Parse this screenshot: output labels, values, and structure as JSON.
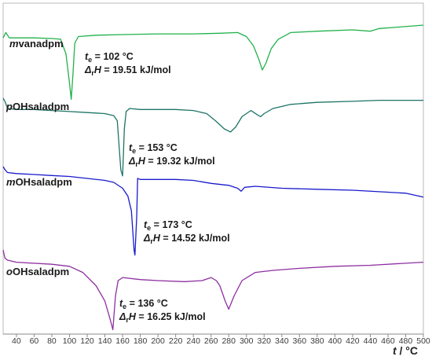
{
  "chart_data": {
    "type": "line",
    "xlabel": "t / °C",
    "xlabel_parts": {
      "var": "t",
      "unit": " / °C"
    },
    "xlim": [
      25,
      500
    ],
    "xticks": [
      40,
      60,
      80,
      100,
      120,
      140,
      160,
      180,
      200,
      220,
      240,
      260,
      280,
      300,
      320,
      340,
      360,
      380,
      400,
      420,
      440,
      460,
      480,
      500
    ],
    "ylabel": "",
    "grid": false,
    "legend": "none",
    "series": [
      {
        "name": "mvanadpm",
        "label_prefix": "m",
        "label_stem": "vanadpm",
        "color": "#22b14c",
        "points": [
          [
            25,
            0.06
          ],
          [
            28,
            0.02
          ],
          [
            32,
            0.06
          ],
          [
            40,
            0.06
          ],
          [
            60,
            0.06
          ],
          [
            80,
            0.065
          ],
          [
            90,
            0.07
          ],
          [
            96,
            0.18
          ],
          [
            100,
            0.4
          ],
          [
            102,
            0.52
          ],
          [
            104,
            0.32
          ],
          [
            106,
            0.1
          ],
          [
            110,
            0.05
          ],
          [
            130,
            0.04
          ],
          [
            160,
            0.035
          ],
          [
            200,
            0.03
          ],
          [
            240,
            0.03
          ],
          [
            270,
            0.025
          ],
          [
            290,
            0.02
          ],
          [
            300,
            0.05
          ],
          [
            308,
            0.12
          ],
          [
            314,
            0.22
          ],
          [
            318,
            0.3
          ],
          [
            322,
            0.25
          ],
          [
            328,
            0.14
          ],
          [
            336,
            0.07
          ],
          [
            350,
            0.02
          ],
          [
            380,
            0.01
          ],
          [
            420,
            0.0
          ],
          [
            440,
            0.01
          ],
          [
            450,
            -0.01
          ],
          [
            470,
            -0.02
          ],
          [
            490,
            -0.03
          ],
          [
            500,
            -0.035
          ]
        ],
        "annotation": {
          "te": "102 °C",
          "dH": "19.51 kJ/mol"
        }
      },
      {
        "name": "pOHsaladpm",
        "label_prefix": "p",
        "label_stem": "OHsaladpm",
        "color": "#1e7466",
        "points": [
          [
            25,
            0.0
          ],
          [
            27,
            0.03
          ],
          [
            30,
            0.1
          ],
          [
            40,
            0.11
          ],
          [
            60,
            0.11
          ],
          [
            80,
            0.12
          ],
          [
            100,
            0.13
          ],
          [
            120,
            0.14
          ],
          [
            140,
            0.15
          ],
          [
            150,
            0.17
          ],
          [
            154,
            0.22
          ],
          [
            158,
            0.7
          ],
          [
            160,
            0.76
          ],
          [
            162,
            0.3
          ],
          [
            164,
            0.13
          ],
          [
            168,
            0.1
          ],
          [
            180,
            0.11
          ],
          [
            200,
            0.11
          ],
          [
            220,
            0.11
          ],
          [
            240,
            0.12
          ],
          [
            255,
            0.15
          ],
          [
            265,
            0.22
          ],
          [
            275,
            0.3
          ],
          [
            282,
            0.33
          ],
          [
            288,
            0.28
          ],
          [
            295,
            0.18
          ],
          [
            305,
            0.12
          ],
          [
            312,
            0.16
          ],
          [
            316,
            0.18
          ],
          [
            320,
            0.15
          ],
          [
            330,
            0.1
          ],
          [
            350,
            0.06
          ],
          [
            380,
            0.04
          ],
          [
            420,
            0.03
          ],
          [
            450,
            0.02
          ],
          [
            470,
            0.02
          ],
          [
            490,
            0.02
          ],
          [
            500,
            0.02
          ]
        ],
        "annotation": {
          "te": "153 °C",
          "dH": "19.32 kJ/mol"
        }
      },
      {
        "name": "mOHsaladpm",
        "label_prefix": "m",
        "label_stem": "OHsaladpm",
        "color": "#1a1acc",
        "points": [
          [
            25,
            0.0
          ],
          [
            27,
            0.03
          ],
          [
            30,
            0.06
          ],
          [
            40,
            0.07
          ],
          [
            60,
            0.08
          ],
          [
            80,
            0.09
          ],
          [
            100,
            0.1
          ],
          [
            120,
            0.12
          ],
          [
            140,
            0.14
          ],
          [
            150,
            0.16
          ],
          [
            160,
            0.22
          ],
          [
            166,
            0.3
          ],
          [
            170,
            0.45
          ],
          [
            173,
            0.85
          ],
          [
            174,
            0.9
          ],
          [
            176,
            0.5
          ],
          [
            177,
            0.12
          ],
          [
            180,
            0.13
          ],
          [
            200,
            0.13
          ],
          [
            220,
            0.13
          ],
          [
            240,
            0.14
          ],
          [
            260,
            0.17
          ],
          [
            280,
            0.19
          ],
          [
            290,
            0.22
          ],
          [
            294,
            0.25
          ],
          [
            298,
            0.21
          ],
          [
            310,
            0.2
          ],
          [
            340,
            0.22
          ],
          [
            380,
            0.23
          ],
          [
            420,
            0.24
          ],
          [
            460,
            0.26
          ],
          [
            480,
            0.27
          ],
          [
            500,
            0.31
          ]
        ],
        "annotation": {
          "te": "173 °C",
          "dH": "14.52 kJ/mol"
        }
      },
      {
        "name": "oOHsaladpm",
        "label_prefix": "o",
        "label_stem": "OHsaladpm",
        "color": "#8e2fa0",
        "points": [
          [
            25,
            0.0
          ],
          [
            27,
            0.08
          ],
          [
            30,
            0.1
          ],
          [
            40,
            0.12
          ],
          [
            80,
            0.14
          ],
          [
            100,
            0.16
          ],
          [
            115,
            0.22
          ],
          [
            130,
            0.35
          ],
          [
            140,
            0.5
          ],
          [
            146,
            0.68
          ],
          [
            149,
            0.78
          ],
          [
            152,
            0.45
          ],
          [
            155,
            0.3
          ],
          [
            160,
            0.27
          ],
          [
            180,
            0.29
          ],
          [
            200,
            0.3
          ],
          [
            230,
            0.31
          ],
          [
            250,
            0.3
          ],
          [
            260,
            0.27
          ],
          [
            266,
            0.3
          ],
          [
            270,
            0.35
          ],
          [
            276,
            0.5
          ],
          [
            280,
            0.58
          ],
          [
            286,
            0.45
          ],
          [
            295,
            0.3
          ],
          [
            310,
            0.22
          ],
          [
            330,
            0.2
          ],
          [
            360,
            0.18
          ],
          [
            400,
            0.16
          ],
          [
            440,
            0.15
          ],
          [
            480,
            0.13
          ],
          [
            500,
            0.12
          ]
        ],
        "annotation": {
          "te": "136 °C",
          "dH": "16.25 kJ/mol"
        }
      }
    ]
  },
  "annotation_text": {
    "te_var": "t",
    "te_sub": "e",
    "eq": " = ",
    "dh_delta": "Δ",
    "dh_sub": "r",
    "dh_var": "H"
  }
}
